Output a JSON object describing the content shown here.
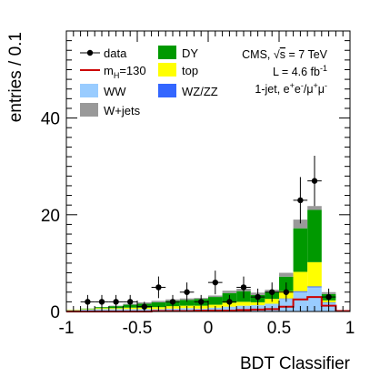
{
  "chart_data": {
    "type": "bar",
    "stacked": true,
    "xlabel": "BDT Classifier",
    "ylabel": "entries / 0.1",
    "xlim": [
      -1,
      1
    ],
    "ylim": [
      0,
      58
    ],
    "xticks": [
      -1,
      -0.5,
      0,
      0.5,
      1
    ],
    "xtick_labels": [
      "-1",
      "-0.5",
      "0",
      "0.5",
      "1"
    ],
    "yticks": [
      0,
      20,
      40
    ],
    "ytick_labels": [
      "0",
      "20",
      "40"
    ],
    "bin_width": 0.1,
    "bin_centers": [
      -0.95,
      -0.85,
      -0.75,
      -0.65,
      -0.55,
      -0.45,
      -0.35,
      -0.25,
      -0.15,
      -0.05,
      0.05,
      0.15,
      0.25,
      0.35,
      0.45,
      0.55,
      0.65,
      0.75,
      0.85,
      0.95
    ],
    "series": [
      {
        "name": "WW",
        "color": "#99ccff",
        "values": [
          0.3,
          0.4,
          0.5,
          0.5,
          0.5,
          0.5,
          0.5,
          0.6,
          0.7,
          0.6,
          0.8,
          1.0,
          1.2,
          1.3,
          1.6,
          2.6,
          4.0,
          5.0,
          1.8,
          0.3
        ]
      },
      {
        "name": "WZ/ZZ",
        "color": "#3366ff",
        "values": [
          0.0,
          0.0,
          0.0,
          0.0,
          0.0,
          0.0,
          0.0,
          0.0,
          0.0,
          0.0,
          0.0,
          0.0,
          0.0,
          0.0,
          0.0,
          0.1,
          0.2,
          0.2,
          0.1,
          0.0
        ]
      },
      {
        "name": "top",
        "color": "#ffff00",
        "values": [
          0.1,
          0.1,
          0.2,
          0.2,
          0.3,
          0.3,
          0.4,
          0.5,
          0.5,
          0.6,
          0.6,
          0.8,
          0.8,
          0.6,
          1.0,
          1.5,
          4.0,
          5.0,
          0.4,
          0.0
        ]
      },
      {
        "name": "DY",
        "color": "#009900",
        "values": [
          0.0,
          0.1,
          0.2,
          0.4,
          0.6,
          0.8,
          1.0,
          1.1,
          1.2,
          1.4,
          1.6,
          2.0,
          2.2,
          1.5,
          1.5,
          3.0,
          9.0,
          10.8,
          1.3,
          0.0
        ]
      },
      {
        "name": "W+jets",
        "color": "#999999",
        "values": [
          0.0,
          0.0,
          0.0,
          0.1,
          0.2,
          0.3,
          0.3,
          0.3,
          0.3,
          0.2,
          0.3,
          0.5,
          0.5,
          0.5,
          0.4,
          0.8,
          1.8,
          0.8,
          0.4,
          0.0
        ]
      }
    ],
    "signal": {
      "name": "m_H=130",
      "color": "#cc0000",
      "values": [
        0.0,
        0.0,
        0.0,
        0.0,
        0.0,
        0.0,
        0.1,
        0.1,
        0.1,
        0.2,
        0.2,
        0.2,
        0.3,
        0.4,
        0.5,
        1.0,
        2.5,
        3.0,
        1.2,
        0.1
      ]
    },
    "data": {
      "name": "data",
      "x": [
        -0.85,
        -0.75,
        -0.65,
        -0.55,
        -0.45,
        -0.35,
        -0.25,
        -0.15,
        -0.05,
        0.05,
        0.15,
        0.25,
        0.35,
        0.45,
        0.55,
        0.65,
        0.75,
        0.85
      ],
      "y": [
        2,
        2,
        2,
        2,
        1,
        5,
        2,
        4,
        2,
        6,
        2,
        5,
        3,
        4,
        4,
        23,
        27,
        3
      ]
    },
    "legend": {
      "placement": "top-left",
      "entries": [
        {
          "label": "data",
          "kind": "marker"
        },
        {
          "label": "DY",
          "kind": "box",
          "color": "#009900"
        },
        {
          "label": "m",
          "sub": "H",
          "suffix": "=130",
          "kind": "line",
          "color": "#cc0000"
        },
        {
          "label": "top",
          "kind": "box",
          "color": "#ffff00"
        },
        {
          "label": "WW",
          "kind": "box",
          "color": "#99ccff"
        },
        {
          "label": "WZ/ZZ",
          "kind": "box",
          "color": "#3366ff"
        },
        {
          "label": "W+jets",
          "kind": "box",
          "color": "#999999"
        }
      ]
    },
    "info": {
      "line1": {
        "pre": "CMS, ",
        "radical": "√",
        "var": "s",
        "post": " = 7 TeV"
      },
      "line2": {
        "pre": "L = 4.6 fb",
        "sup": "-1"
      },
      "line3": {
        "pre": "1-jet, e",
        "sup1": "+",
        "mid1": "e",
        "sup2": "-",
        "mid2": "/μ",
        "sup3": "+",
        "mid3": "μ",
        "sup4": "-"
      }
    }
  }
}
